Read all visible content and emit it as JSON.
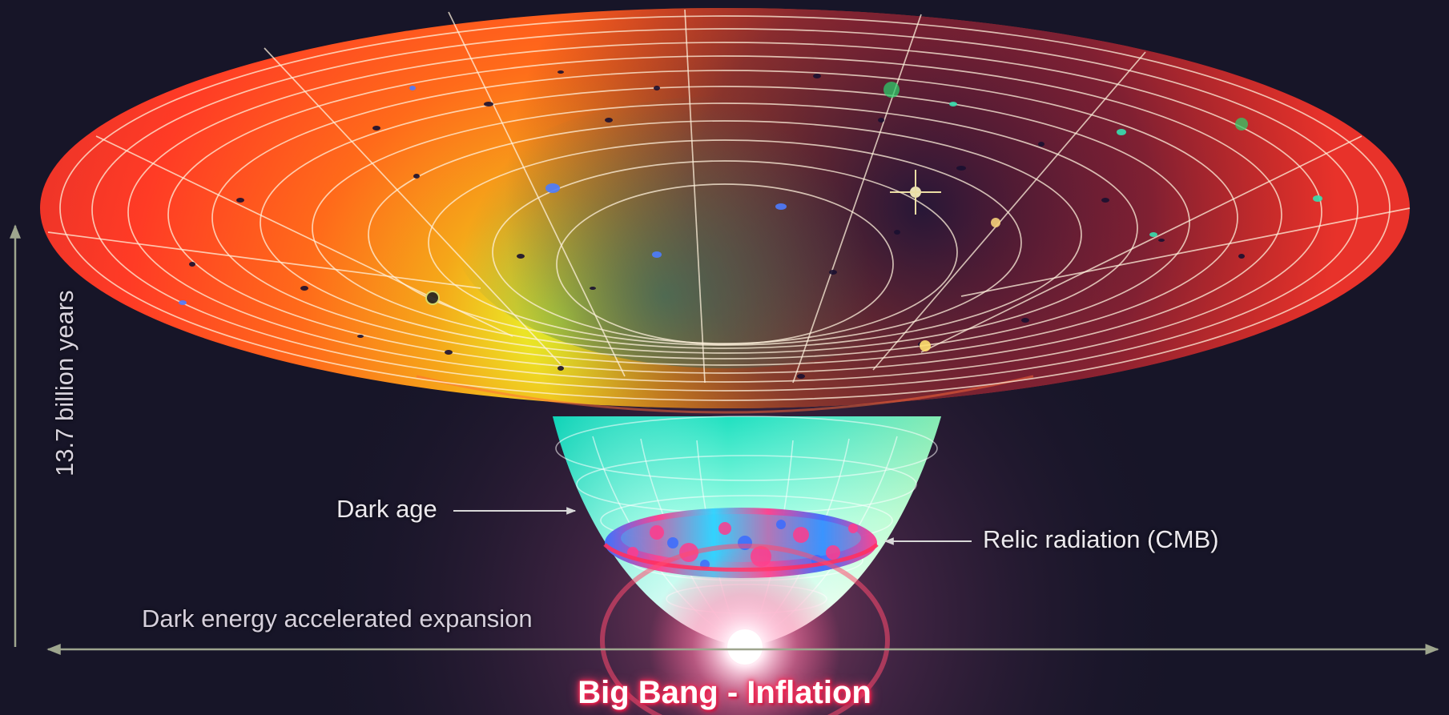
{
  "labels": {
    "dark_age": "Dark age",
    "relic_radiation": "Relic radiation (CMB)",
    "expansion": "Dark energy accelerated expansion",
    "time_axis": "13.7 billion years",
    "origin": "Big Bang - Inflation"
  },
  "colors": {
    "background": "#171528",
    "outer_rim": "#e8322a",
    "inner_yellow": "#dcff2a",
    "funnel_cyan": "#7dffe0",
    "cmb_pink": "#ff3c8c",
    "cmb_blue": "#3a6cff",
    "grid_line": "#fff1dc",
    "arrow": "#9ea58e",
    "glow": "#ff5f96"
  }
}
